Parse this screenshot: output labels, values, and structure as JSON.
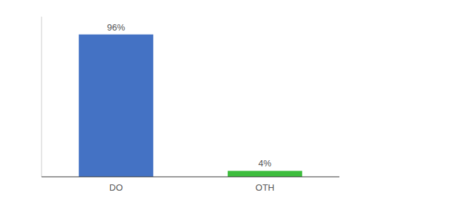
{
  "chart_data": {
    "type": "bar",
    "categories": [
      "DO",
      "OTH"
    ],
    "values": [
      96,
      4
    ],
    "value_labels": [
      "96%",
      "4%"
    ],
    "colors": [
      "#4472C4",
      "#3DBD3D"
    ],
    "ylim": [
      0,
      108
    ],
    "data_labels": true,
    "tick_labels": "x"
  }
}
